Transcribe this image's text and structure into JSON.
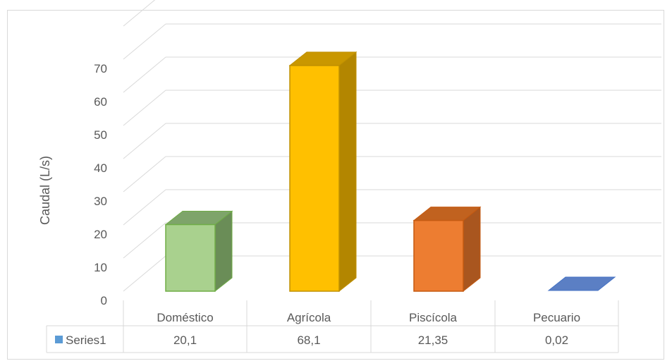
{
  "chart_data": {
    "type": "bar",
    "style": "3d-column-with-data-table",
    "ylabel": "Caudal (L/s)",
    "ylim": [
      0,
      70
    ],
    "yticks": [
      0,
      10,
      20,
      30,
      40,
      50,
      60,
      70
    ],
    "grid": true,
    "categories": [
      "Doméstico",
      "Agrícola",
      "Piscícola",
      "Pecuario"
    ],
    "series": [
      {
        "name": "Series1",
        "values": [
          20.1,
          68.1,
          21.35,
          0.02
        ]
      }
    ],
    "table_values": [
      "20,1",
      "68,1",
      "21,35",
      "0,02"
    ],
    "legend_key_color": "#5b9bd5",
    "bar_colors": [
      {
        "front": "#a9d18e",
        "side": "#6a8d57",
        "top": "#7ea46a",
        "border": "#70ad47"
      },
      {
        "front": "#ffc000",
        "side": "#b38600",
        "top": "#c99700",
        "border": "#bf9000"
      },
      {
        "front": "#ed7d31",
        "side": "#a9561f",
        "top": "#c1621f",
        "border": "#c55a11"
      },
      {
        "front": "#5b7fc4",
        "side": "#4a6aa8",
        "top": "#6b8ccc",
        "border": "#4472c4"
      }
    ]
  }
}
